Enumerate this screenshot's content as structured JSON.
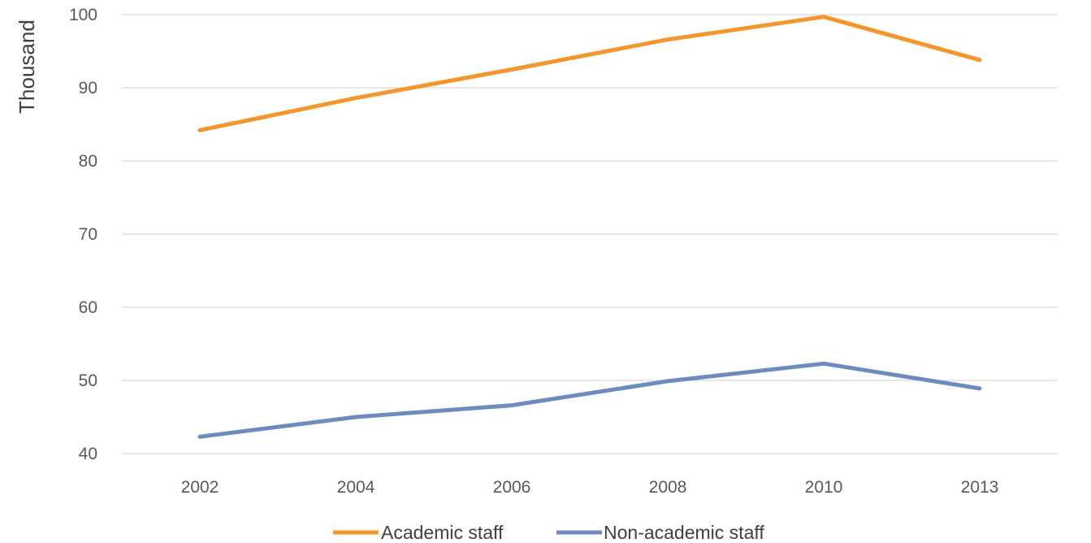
{
  "chart_data": {
    "type": "line",
    "title": "",
    "xlabel": "",
    "ylabel": "Thousand",
    "categories": [
      "2002",
      "2004",
      "2006",
      "2008",
      "2010",
      "2013"
    ],
    "ylim": [
      40,
      100
    ],
    "yticks": [
      40,
      50,
      60,
      70,
      80,
      90,
      100
    ],
    "grid": true,
    "legend_position": "bottom",
    "series": [
      {
        "name": "Academic staff",
        "color": "#f4962c",
        "values": [
          84.2,
          88.6,
          92.5,
          96.6,
          99.7,
          93.8
        ]
      },
      {
        "name": "Non-academic staff",
        "color": "#6e8bc0",
        "values": [
          42.3,
          45.0,
          46.6,
          49.9,
          52.3,
          48.9
        ]
      }
    ]
  }
}
